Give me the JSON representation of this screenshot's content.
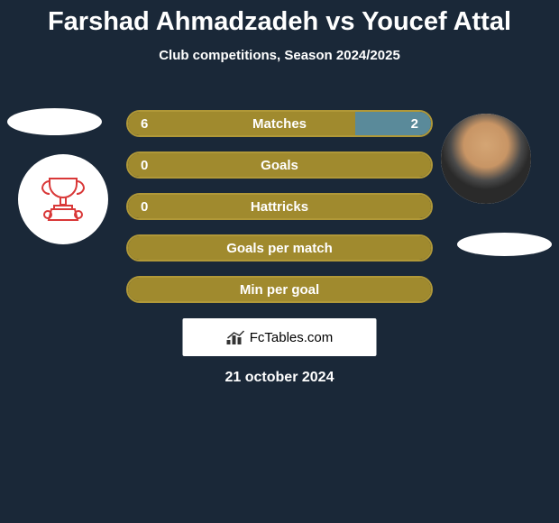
{
  "title": {
    "text": "Farshad Ahmadzadeh vs Youcef Attal",
    "fontsize": 29,
    "color": "#ffffff"
  },
  "subtitle": {
    "text": "Club competitions, Season 2024/2025",
    "fontsize": 15,
    "color": "#ffffff"
  },
  "background_color": "#1a2838",
  "bar_colors": {
    "fill": "#a08a2e",
    "border": "#b09838",
    "opponent_fill": "#5a8a9a"
  },
  "stats": [
    {
      "label": "Matches",
      "left_value": "6",
      "right_value": "2",
      "left_pct": 75,
      "right_pct": 25,
      "show_right_fill": true
    },
    {
      "label": "Goals",
      "left_value": "0",
      "right_value": "",
      "left_pct": 100,
      "right_pct": 0,
      "show_right_fill": false
    },
    {
      "label": "Hattricks",
      "left_value": "0",
      "right_value": "",
      "left_pct": 100,
      "right_pct": 0,
      "show_right_fill": false
    },
    {
      "label": "Goals per match",
      "left_value": "",
      "right_value": "",
      "left_pct": 100,
      "right_pct": 0,
      "show_right_fill": false
    },
    {
      "label": "Min per goal",
      "left_value": "",
      "right_value": "",
      "left_pct": 100,
      "right_pct": 0,
      "show_right_fill": false
    }
  ],
  "label_fontsize": 15,
  "value_fontsize": 15,
  "fctables": {
    "text": "FcTables.com",
    "fontsize": 15
  },
  "date": {
    "text": "21 october 2024",
    "fontsize": 16
  },
  "trophy_color": "#d93838"
}
